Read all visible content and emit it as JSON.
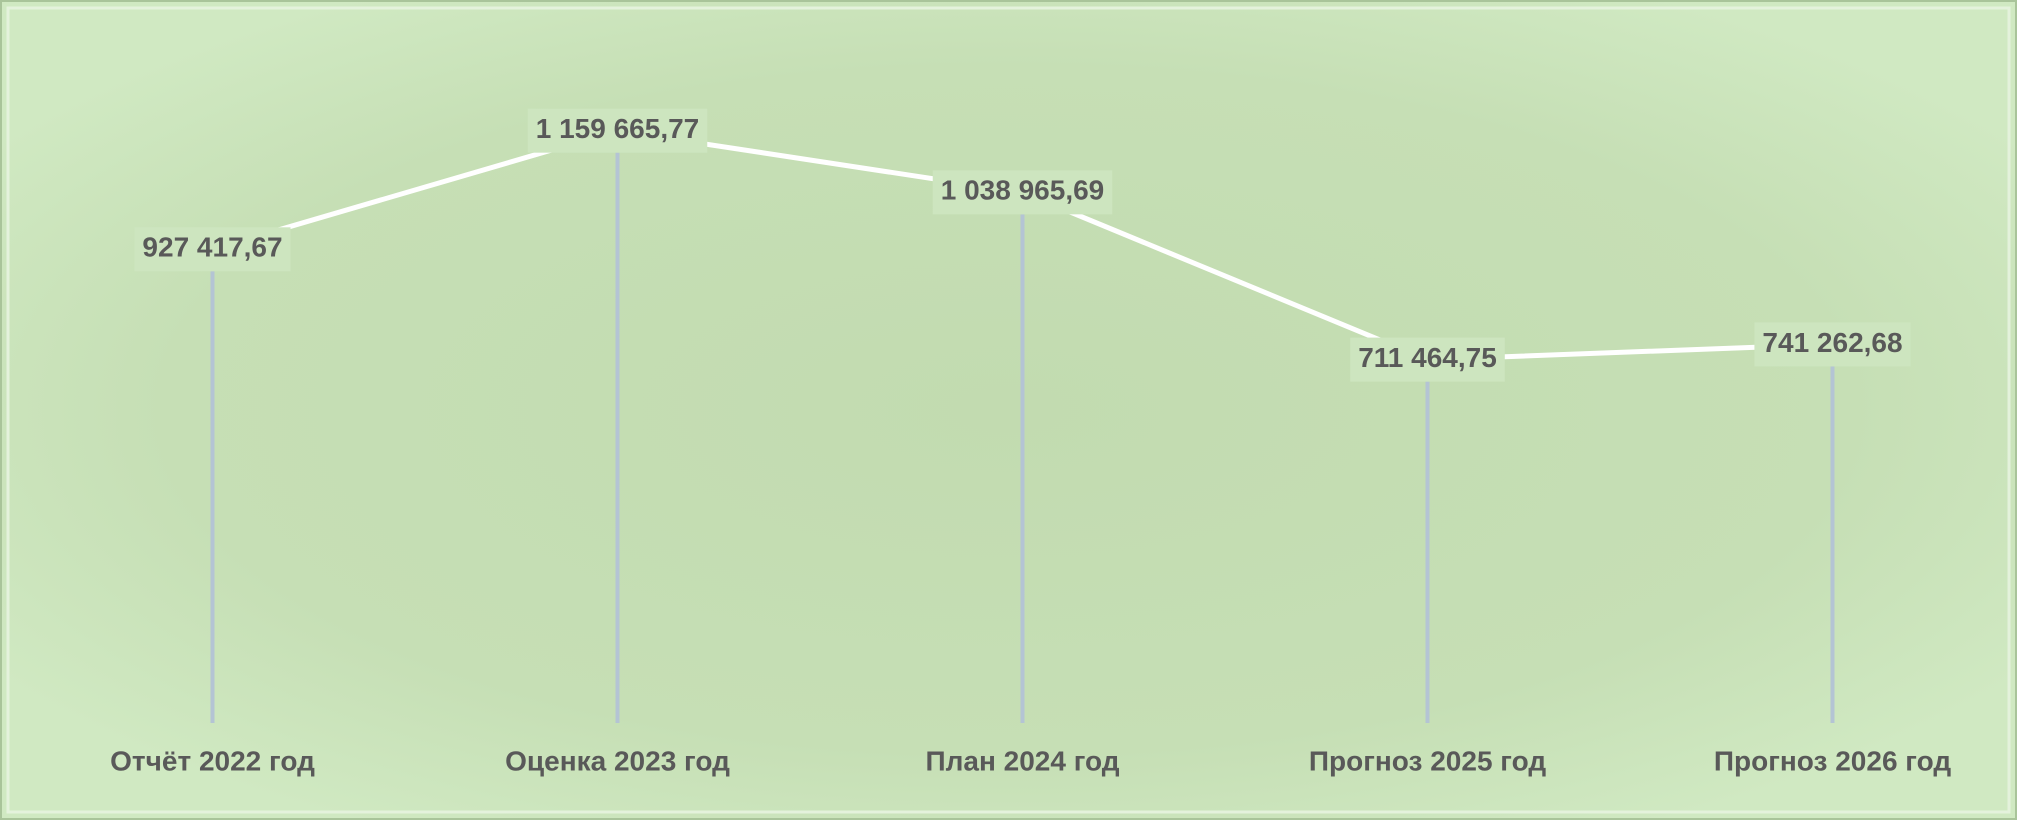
{
  "chart_data": {
    "type": "line",
    "categories": [
      "Отчёт 2022 год",
      "Оценка 2023 год",
      "План 2024 год",
      "Прогноз 2025 год",
      "Прогноз 2026 год"
    ],
    "values": [
      927417.67,
      1159665.77,
      1038965.69,
      711464.75,
      741262.68
    ],
    "value_labels": [
      "927 417,67",
      "1 159 665,77",
      "1 038 965,69",
      "711 464,75",
      "741 262,68"
    ],
    "color": "#ffffff",
    "drop_line_color": "#b4c4d4",
    "ylim": [
      0,
      1300000
    ]
  }
}
